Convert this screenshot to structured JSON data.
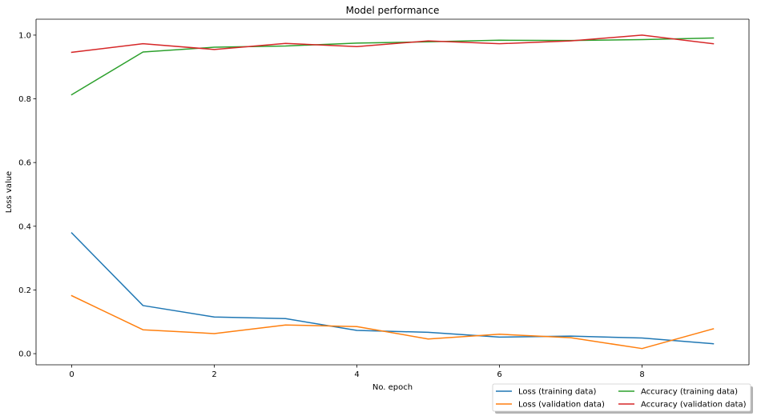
{
  "chart_data": {
    "type": "line",
    "title": "Model performance",
    "xlabel": "No. epoch",
    "ylabel": "Loss value",
    "xlim": [
      -0.5,
      9.5
    ],
    "ylim": [
      -0.035,
      1.05
    ],
    "xticks": [
      0,
      2,
      4,
      6,
      8
    ],
    "xtick_labels": [
      "0",
      "2",
      "4",
      "6",
      "8"
    ],
    "yticks": [
      0.0,
      0.2,
      0.4,
      0.6,
      0.8,
      1.0
    ],
    "ytick_labels": [
      "0.0",
      "0.2",
      "0.4",
      "0.6",
      "0.8",
      "1.0"
    ],
    "grid": false,
    "legend_position": "bottom-right",
    "x": [
      0,
      1,
      2,
      3,
      4,
      5,
      6,
      7,
      8,
      9
    ],
    "series": [
      {
        "name": "Loss (training data)",
        "color": "#1f77b4",
        "values": [
          0.379,
          0.151,
          0.115,
          0.11,
          0.073,
          0.067,
          0.052,
          0.055,
          0.049,
          0.031
        ]
      },
      {
        "name": "Loss (validation data)",
        "color": "#ff7f0e",
        "values": [
          0.182,
          0.075,
          0.063,
          0.09,
          0.085,
          0.046,
          0.061,
          0.05,
          0.016,
          0.078
        ]
      },
      {
        "name": "Accuracy (training data)",
        "color": "#2ca02c",
        "values": [
          0.813,
          0.947,
          0.962,
          0.966,
          0.975,
          0.979,
          0.984,
          0.983,
          0.986,
          0.991
        ]
      },
      {
        "name": "Accuracy (validation data)",
        "color": "#d62728",
        "values": [
          0.946,
          0.973,
          0.955,
          0.974,
          0.964,
          0.982,
          0.973,
          0.982,
          1.0,
          0.973
        ]
      }
    ]
  }
}
